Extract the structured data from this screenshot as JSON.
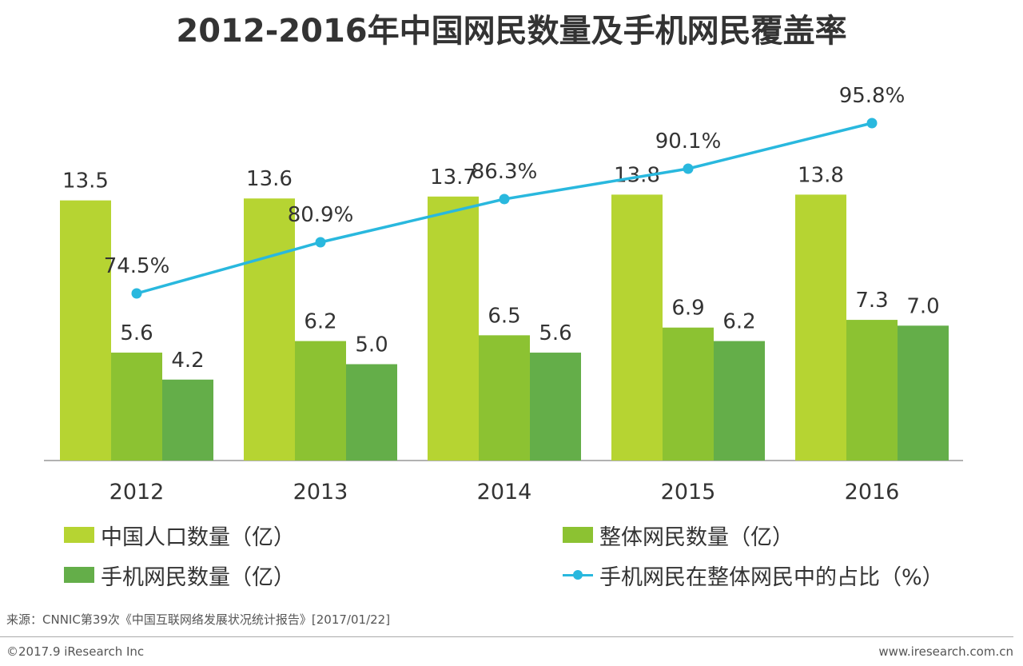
{
  "chart_data": {
    "type": "bar+line",
    "title": "2012-2016年中国网民数量及手机网民覆盖率",
    "categories": [
      "2012",
      "2013",
      "2014",
      "2015",
      "2016"
    ],
    "series": [
      {
        "name": "中国人口数量（亿）",
        "type": "bar",
        "color": "#B6D432",
        "values": [
          13.5,
          13.6,
          13.7,
          13.8,
          13.8
        ],
        "labels": [
          "13.5",
          "13.6",
          "13.7",
          "13.8",
          "13.8"
        ]
      },
      {
        "name": "整体网民数量（亿）",
        "type": "bar",
        "color": "#8CC232",
        "values": [
          5.6,
          6.2,
          6.5,
          6.9,
          7.3
        ],
        "labels": [
          "5.6",
          "6.2",
          "6.5",
          "6.9",
          "7.3"
        ]
      },
      {
        "name": "手机网民数量（亿）",
        "type": "bar",
        "color": "#64AE49",
        "values": [
          4.2,
          5.0,
          5.6,
          6.2,
          7.0
        ],
        "labels": [
          "4.2",
          "5.0",
          "5.6",
          "6.2",
          "7.0"
        ]
      },
      {
        "name": "手机网民在整体网民中的占比（%）",
        "type": "line",
        "color": "#29B8DE",
        "values": [
          74.5,
          80.9,
          86.3,
          90.1,
          95.8
        ],
        "labels": [
          "74.5%",
          "80.9%",
          "86.3%",
          "90.1%",
          "95.8%"
        ]
      }
    ],
    "ylim_bars": [
      0,
      14
    ],
    "ylim_line": [
      0,
      100
    ],
    "grid": false,
    "legend_position": "bottom"
  },
  "source": "来源：CNNIC第39次《中国互联网络发展状况统计报告》[2017/01/22]",
  "footer": {
    "copyright": "©2017.9 iResearch Inc",
    "website": "www.iresearch.com.cn"
  }
}
